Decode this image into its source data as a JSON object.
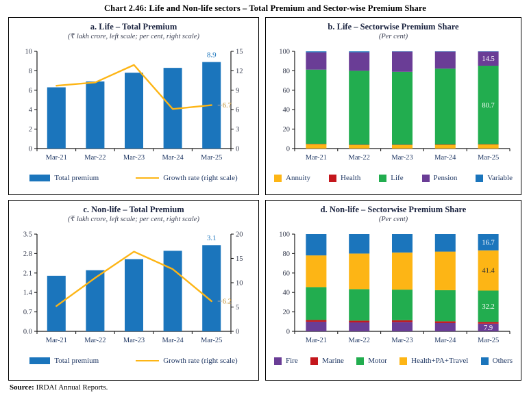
{
  "title": "Chart 2.46: Life and Non-life sectors – Total Premium and Sector-wise Premium Share",
  "source": {
    "label": "Source:",
    "text": " IRDAI Annual Reports."
  },
  "colors": {
    "blue": "#1B75BC",
    "yellow": "#FDB515",
    "green": "#22AD4F",
    "purple": "#6A3D96",
    "red": "#C4161C",
    "axis": "#1a1a1a",
    "tick_text": "#343a4d",
    "x_text": "#203864",
    "bar_label": "#1B75BC",
    "line_label": "#BD8E2E",
    "leader": "#9aa0a6"
  },
  "chart_data": [
    {
      "id": "a",
      "type": "bar-line",
      "title": "a. Life – Total Premium",
      "subtitle": "(₹ lakh crore, left scale; per cent, right scale)",
      "categories": [
        "Mar-21",
        "Mar-22",
        "Mar-23",
        "Mar-24",
        "Mar-25"
      ],
      "bar_series": {
        "name": "Total premium",
        "color": "#1B75BC",
        "values": [
          6.3,
          6.9,
          7.8,
          8.3,
          8.9
        ],
        "end_label": "8.9"
      },
      "line_series": {
        "name": "Growth rate (right scale)",
        "color": "#FDB515",
        "values": [
          9.7,
          10.2,
          12.9,
          6.1,
          6.7
        ],
        "end_label": "6.7"
      },
      "left_ticks": [
        0,
        2,
        4,
        6,
        8,
        10
      ],
      "left_tick_labels": [
        "0",
        "2",
        "4",
        "6",
        "8",
        "10"
      ],
      "left_max": 10,
      "right_ticks": [
        0,
        3,
        6,
        9,
        12,
        15
      ],
      "right_tick_labels": [
        "0",
        "3",
        "6",
        "9",
        "12",
        "15"
      ],
      "right_max": 15
    },
    {
      "id": "b",
      "type": "stacked-bar",
      "title": "b. Life – Sectorwise Premium Share",
      "subtitle": "(Per cent)",
      "categories": [
        "Mar-21",
        "Mar-22",
        "Mar-23",
        "Mar-24",
        "Mar-25"
      ],
      "series": [
        {
          "name": "Annuity",
          "color": "#FDB515",
          "values": [
            4.6,
            3.8,
            3.8,
            4.0,
            4.3
          ]
        },
        {
          "name": "Health",
          "color": "#C4161C",
          "values": [
            0.2,
            0.2,
            0.2,
            0.2,
            0.2
          ]
        },
        {
          "name": "Life",
          "color": "#22AD4F",
          "values": [
            76.4,
            76.0,
            75.0,
            78.0,
            80.7
          ]
        },
        {
          "name": "Pension",
          "color": "#6A3D96",
          "values": [
            17.8,
            19.0,
            20.8,
            17.6,
            14.5
          ]
        },
        {
          "name": "Variable",
          "color": "#1B75BC",
          "values": [
            1.0,
            1.0,
            0.2,
            0.2,
            0.3
          ]
        }
      ],
      "y_ticks": [
        0,
        20,
        40,
        60,
        80,
        100
      ],
      "y_tick_labels": [
        "0",
        "20",
        "40",
        "60",
        "80",
        "100"
      ],
      "y_max": 100,
      "value_labels": [
        {
          "category": "Mar-25",
          "series": "Pension",
          "text": "14.5",
          "color": "#ffffff"
        },
        {
          "category": "Mar-25",
          "series": "Life",
          "text": "80.7",
          "color": "#ffffff"
        }
      ]
    },
    {
      "id": "c",
      "type": "bar-line",
      "title": "c. Non-life – Total Premium",
      "subtitle": "(₹ lakh crore, left scale; per cent, right scale)",
      "categories": [
        "Mar-21",
        "Mar-22",
        "Mar-23",
        "Mar-24",
        "Mar-25"
      ],
      "bar_series": {
        "name": "Total premium",
        "color": "#1B75BC",
        "values": [
          2.0,
          2.2,
          2.6,
          2.9,
          3.1
        ],
        "end_label": "3.1"
      },
      "line_series": {
        "name": "Growth rate (right scale)",
        "color": "#FDB515",
        "values": [
          5.2,
          11.0,
          16.4,
          12.8,
          6.2
        ],
        "end_label": "6.2"
      },
      "left_ticks": [
        0,
        0.7,
        1.4,
        2.1,
        2.8,
        3.5
      ],
      "left_tick_labels": [
        "0.0",
        "0.7",
        "1.4",
        "2.1",
        "2.8",
        "3.5"
      ],
      "left_max": 3.5,
      "right_ticks": [
        0,
        5,
        10,
        15,
        20
      ],
      "right_tick_labels": [
        "0",
        "5",
        "10",
        "15",
        "20"
      ],
      "right_max": 20
    },
    {
      "id": "d",
      "type": "stacked-bar",
      "title": "d. Non-life – Sectorwise Premium Share",
      "subtitle": "(Per cent)",
      "categories": [
        "Mar-21",
        "Mar-22",
        "Mar-23",
        "Mar-24",
        "Mar-25"
      ],
      "series": [
        {
          "name": "Fire",
          "color": "#6A3D96",
          "values": [
            9.9,
            9.2,
            9.6,
            8.5,
            7.9
          ]
        },
        {
          "name": "Marine",
          "color": "#C4161C",
          "values": [
            1.8,
            1.8,
            1.8,
            1.8,
            1.8
          ]
        },
        {
          "name": "Motor",
          "color": "#22AD4F",
          "values": [
            33.8,
            32.4,
            31.5,
            32.0,
            32.2
          ]
        },
        {
          "name": "Health+PA+Travel",
          "color": "#FDB515",
          "values": [
            32.6,
            36.6,
            38.2,
            39.7,
            41.4
          ]
        },
        {
          "name": "Others",
          "color": "#1B75BC",
          "values": [
            21.9,
            20.0,
            18.9,
            18.0,
            16.7
          ]
        }
      ],
      "y_ticks": [
        0,
        20,
        40,
        60,
        80,
        100
      ],
      "y_tick_labels": [
        "0",
        "20",
        "40",
        "60",
        "80",
        "100"
      ],
      "y_max": 100,
      "value_labels": [
        {
          "category": "Mar-25",
          "series": "Others",
          "text": "16.7",
          "color": "#ffffff"
        },
        {
          "category": "Mar-25",
          "series": "Health+PA+Travel",
          "text": "41.4",
          "color": "#333333"
        },
        {
          "category": "Mar-25",
          "series": "Motor",
          "text": "32.2",
          "color": "#ffffff"
        },
        {
          "category": "Mar-25",
          "series": "Fire",
          "text": "7.9",
          "color": "#ffffff"
        }
      ]
    }
  ]
}
